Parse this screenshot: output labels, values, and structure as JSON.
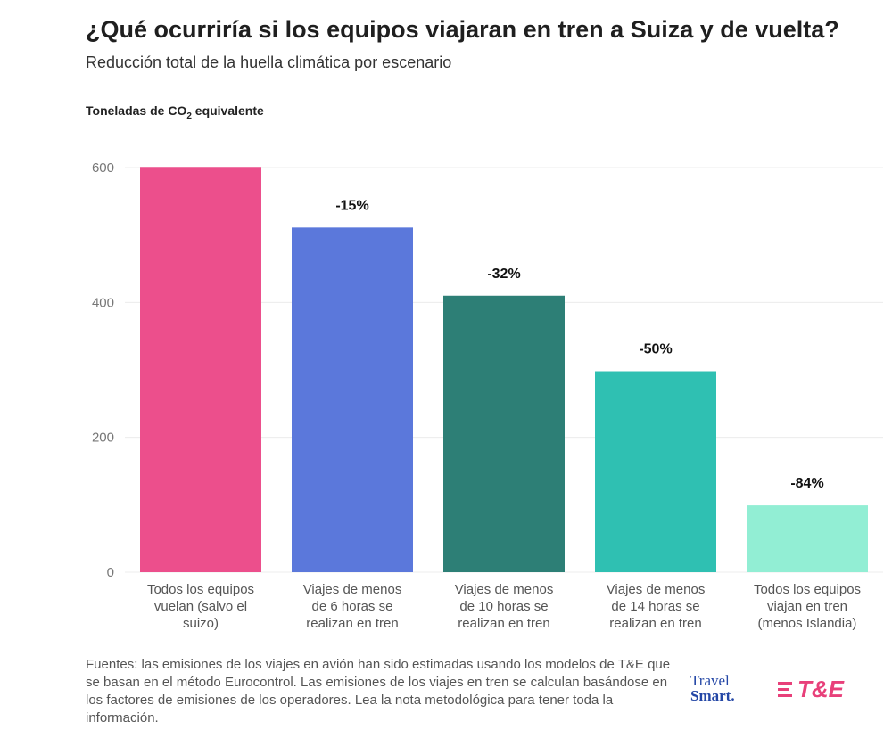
{
  "title": "¿Qué ocurriría si los equipos viajaran en tren a Suiza y de vuelta?",
  "subtitle": "Reducción total de la huella climática por escenario",
  "ylabel_main": "Toneladas de CO",
  "ylabel_sub": "2",
  "ylabel_tail": " equivalente",
  "source": "Fuentes: las emisiones de los viajes en avión han sido estimadas usando los modelos de T&E que se basan en el método Eurocontrol. Las emisiones de los viajes en tren se calculan basándose en los factores de emisiones de los operadores. Lea la nota metodológica para tener toda la información.",
  "logos": {
    "travel_line1": "Travel",
    "travel_line2": "Smart.",
    "te": "T&E"
  },
  "chart_data": {
    "type": "bar",
    "categories": [
      [
        "Todos los equipos",
        "vuelan (salvo el",
        "suizo)"
      ],
      [
        "Viajes de menos",
        "de 6 horas se",
        "realizan en tren"
      ],
      [
        "Viajes de menos",
        "de 10 horas se",
        "realizan en tren"
      ],
      [
        "Viajes de menos",
        "de 14 horas se",
        "realizan en tren"
      ],
      [
        "Todos los equipos",
        "viajan en tren",
        "(menos Islandia)"
      ]
    ],
    "values": [
      601,
      511,
      410,
      298,
      99
    ],
    "data_labels": [
      "",
      "-15%",
      "-32%",
      "-50%",
      "-84%"
    ],
    "colors": [
      "#ec4f8c",
      "#5b78db",
      "#2d7f76",
      "#2fc0b2",
      "#92eed4"
    ],
    "ylim": [
      0,
      600
    ],
    "yticks": [
      0,
      200,
      400,
      600
    ],
    "grid": true
  }
}
